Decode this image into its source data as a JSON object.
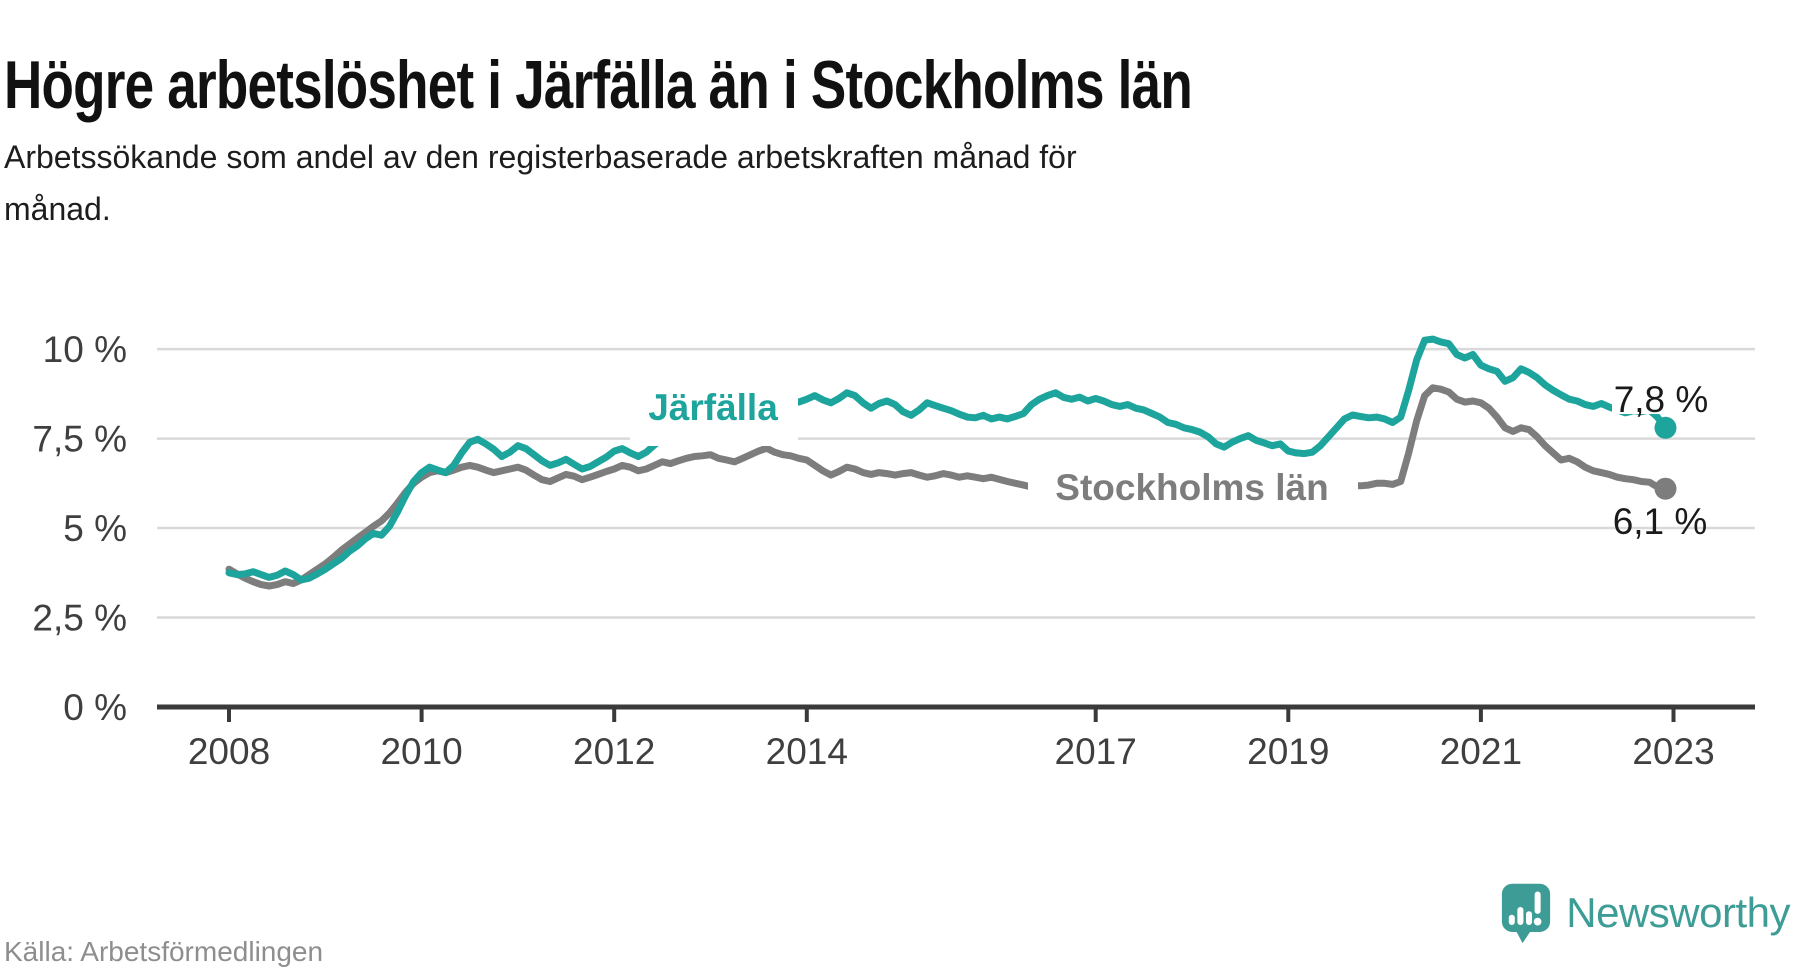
{
  "title": "Högre arbetslöshet i Järfälla än i Stockholms län",
  "subtitle": {
    "full": "Arbetssökande som andel av den registerbaserade arbetskraften månad för månad.",
    "line1": "Arbetssökande som andel av den registerbaserade arbetskraften månad för",
    "line2": "månad."
  },
  "source_label": "Källa: Arbetsförmedlingen",
  "logo": {
    "text": "Newsworthy",
    "color": "#3d9c95",
    "icon": "speech-bubble-bar-chart-icon"
  },
  "colors": {
    "jarfalla_line": "#1da49c",
    "stockholm_line": "#7d7d7d",
    "gridline": "#d9d9d9",
    "axis": "#3a3a3a",
    "axis_text": "#3f3f3f",
    "annotation_text": "#1a1a1a"
  },
  "chart_data": {
    "type": "line",
    "unit": "%",
    "frequency": "monthly",
    "x_start": "2008-01",
    "x_end": "2022-12",
    "grid": "horizontal",
    "y_axis": {
      "min": 0,
      "max": 10.5,
      "ticks": [
        {
          "label": "10 %",
          "value": 10
        },
        {
          "label": "7,5 %",
          "value": 7.5
        },
        {
          "label": "5 %",
          "value": 5
        },
        {
          "label": "2,5 %",
          "value": 2.5
        },
        {
          "label": "0 %",
          "value": 0
        }
      ]
    },
    "x_axis": {
      "ticks": [
        {
          "label": "2008",
          "year": 2008
        },
        {
          "label": "2010",
          "year": 2010
        },
        {
          "label": "2012",
          "year": 2012
        },
        {
          "label": "2014",
          "year": 2014
        },
        {
          "label": "2017",
          "year": 2017
        },
        {
          "label": "2019",
          "year": 2019
        },
        {
          "label": "2021",
          "year": 2021
        },
        {
          "label": "2023",
          "year": 2023
        }
      ]
    },
    "series": [
      {
        "name": "Järfälla",
        "color": "#1da49c",
        "end_label": "7,8 %",
        "end_value": 7.8,
        "values": [
          3.75,
          3.7,
          3.72,
          3.78,
          3.7,
          3.62,
          3.68,
          3.8,
          3.7,
          3.55,
          3.6,
          3.72,
          3.85,
          4.0,
          4.15,
          4.35,
          4.5,
          4.7,
          4.85,
          4.8,
          5.05,
          5.45,
          5.9,
          6.3,
          6.55,
          6.7,
          6.62,
          6.55,
          6.75,
          7.1,
          7.4,
          7.48,
          7.35,
          7.2,
          7.0,
          7.12,
          7.3,
          7.22,
          7.05,
          6.88,
          6.75,
          6.82,
          6.92,
          6.78,
          6.65,
          6.72,
          6.85,
          6.98,
          7.15,
          7.22,
          7.1,
          7.0,
          7.12,
          7.32,
          7.5,
          7.58,
          7.7,
          7.85,
          8.0,
          8.2,
          8.45,
          8.62,
          8.75,
          8.85,
          8.78,
          8.88,
          8.8,
          8.66,
          8.55,
          8.62,
          8.55,
          8.52,
          8.6,
          8.7,
          8.58,
          8.5,
          8.62,
          8.78,
          8.7,
          8.5,
          8.35,
          8.48,
          8.55,
          8.45,
          8.25,
          8.15,
          8.3,
          8.5,
          8.42,
          8.35,
          8.28,
          8.18,
          8.1,
          8.08,
          8.15,
          8.05,
          8.1,
          8.05,
          8.12,
          8.2,
          8.45,
          8.6,
          8.7,
          8.78,
          8.65,
          8.6,
          8.66,
          8.55,
          8.62,
          8.55,
          8.45,
          8.4,
          8.45,
          8.35,
          8.3,
          8.2,
          8.1,
          7.95,
          7.9,
          7.8,
          7.75,
          7.68,
          7.55,
          7.35,
          7.26,
          7.4,
          7.5,
          7.58,
          7.45,
          7.38,
          7.3,
          7.35,
          7.15,
          7.1,
          7.08,
          7.12,
          7.3,
          7.55,
          7.8,
          8.05,
          8.16,
          8.12,
          8.08,
          8.1,
          8.05,
          7.95,
          8.1,
          8.85,
          9.7,
          10.25,
          10.28,
          10.2,
          10.15,
          9.85,
          9.75,
          9.85,
          9.55,
          9.45,
          9.38,
          9.1,
          9.2,
          9.45,
          9.35,
          9.2,
          9.0,
          8.85,
          8.72,
          8.6,
          8.55,
          8.45,
          8.4,
          8.48,
          8.38,
          8.3,
          8.22,
          8.28,
          8.25,
          8.3,
          8.1,
          7.8
        ]
      },
      {
        "name": "Stockholms län",
        "color": "#7d7d7d",
        "end_label": "6,1 %",
        "end_value": 6.1,
        "values": [
          3.85,
          3.72,
          3.6,
          3.5,
          3.42,
          3.38,
          3.42,
          3.5,
          3.45,
          3.55,
          3.7,
          3.85,
          4.0,
          4.18,
          4.38,
          4.55,
          4.72,
          4.88,
          5.05,
          5.2,
          5.42,
          5.7,
          6.0,
          6.25,
          6.42,
          6.55,
          6.6,
          6.55,
          6.62,
          6.7,
          6.75,
          6.7,
          6.62,
          6.55,
          6.6,
          6.65,
          6.7,
          6.62,
          6.48,
          6.35,
          6.3,
          6.4,
          6.5,
          6.45,
          6.35,
          6.42,
          6.5,
          6.58,
          6.65,
          6.75,
          6.7,
          6.6,
          6.65,
          6.75,
          6.85,
          6.8,
          6.88,
          6.95,
          7.0,
          7.02,
          7.05,
          6.95,
          6.9,
          6.85,
          6.95,
          7.05,
          7.15,
          7.23,
          7.12,
          7.05,
          7.02,
          6.95,
          6.9,
          6.75,
          6.6,
          6.48,
          6.58,
          6.7,
          6.65,
          6.55,
          6.5,
          6.55,
          6.52,
          6.48,
          6.52,
          6.55,
          6.48,
          6.42,
          6.46,
          6.52,
          6.48,
          6.42,
          6.46,
          6.42,
          6.38,
          6.42,
          6.36,
          6.3,
          6.25,
          6.2,
          6.15,
          6.2,
          6.22,
          6.18,
          6.12,
          6.08,
          6.1,
          6.05,
          6.08,
          6.05,
          6.0,
          5.98,
          6.02,
          6.08,
          6.12,
          6.08,
          6.02,
          5.98,
          5.96,
          5.95,
          5.95,
          5.92,
          5.88,
          5.85,
          5.88,
          5.95,
          6.02,
          6.05,
          6.0,
          5.98,
          6.0,
          6.05,
          6.08,
          6.05,
          6.02,
          6.05,
          6.1,
          6.15,
          6.2,
          6.22,
          6.2,
          6.18,
          6.2,
          6.25,
          6.25,
          6.22,
          6.3,
          7.1,
          8.0,
          8.7,
          8.92,
          8.88,
          8.8,
          8.6,
          8.52,
          8.55,
          8.5,
          8.35,
          8.1,
          7.8,
          7.7,
          7.8,
          7.75,
          7.55,
          7.3,
          7.1,
          6.9,
          6.95,
          6.85,
          6.7,
          6.6,
          6.55,
          6.5,
          6.42,
          6.38,
          6.35,
          6.3,
          6.28,
          6.15,
          6.1
        ]
      }
    ]
  }
}
